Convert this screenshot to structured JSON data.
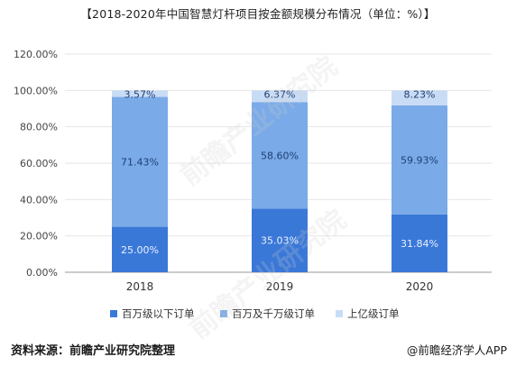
{
  "title": "【2018-2020年中国智慧灯杆项目按金额规模分布情况（单位：%）】",
  "watermark": "前瞻产业研究院",
  "footer": {
    "source": "资料来源：前瞻产业研究院整理",
    "brand": "@前瞻经济学人APP"
  },
  "colors": {
    "below_million": "#3a78d8",
    "million_to_ten_million": "#7aaae8",
    "above_hundred_million": "#c9dcf5"
  },
  "chart_data": {
    "type": "bar",
    "stacked": true,
    "categories": [
      "2018",
      "2019",
      "2020"
    ],
    "series": [
      {
        "name": "百万级以下订单",
        "values": [
          25.0,
          35.03,
          31.84
        ],
        "labels": [
          "25.00%",
          "35.03%",
          "31.84%"
        ]
      },
      {
        "name": "百万及千万级订单",
        "values": [
          71.43,
          58.6,
          59.93
        ],
        "labels": [
          "71.43%",
          "58.60%",
          "59.93%"
        ]
      },
      {
        "name": "上亿级订单",
        "values": [
          3.57,
          6.37,
          8.23
        ],
        "labels": [
          "3.57%",
          "6.37%",
          "8.23%"
        ]
      }
    ],
    "ylim": [
      0,
      120
    ],
    "yticks": [
      0,
      20,
      40,
      60,
      80,
      100,
      120
    ],
    "ytick_labels": [
      "0.00%",
      "20.00%",
      "40.00%",
      "60.00%",
      "80.00%",
      "100.00%",
      "120.00%"
    ],
    "grid": true,
    "legend": "bottom"
  }
}
